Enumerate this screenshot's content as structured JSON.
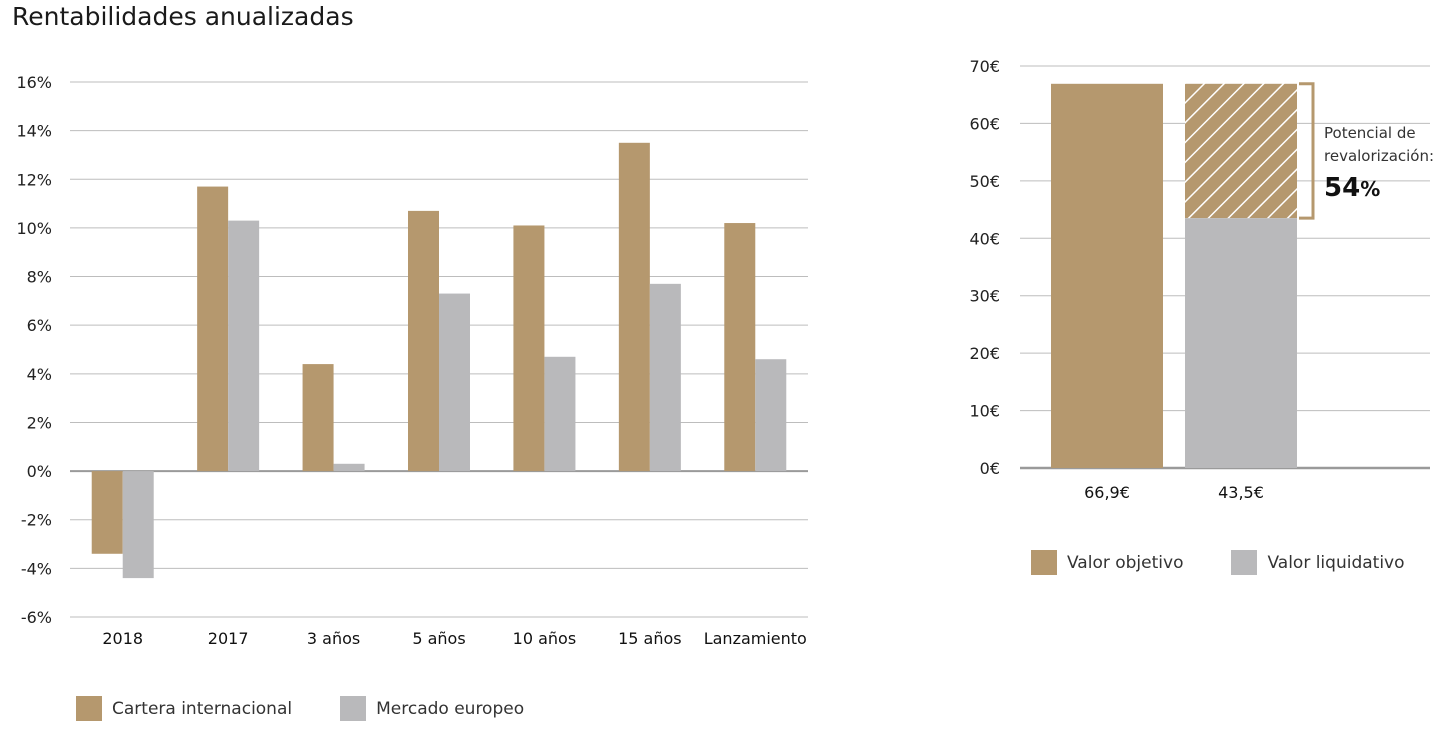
{
  "title": "Rentabilidades anualizadas",
  "colors": {
    "gold": "#b5986e",
    "gray": "#b9b9bb",
    "grid": "#bdbdbd",
    "axis": "#9a9a9a"
  },
  "chart_data": [
    {
      "type": "bar",
      "title": "Rentabilidades anualizadas",
      "categories": [
        "2018",
        "2017",
        "3 años",
        "5 años",
        "10 años",
        "15 años",
        "Lanzamiento"
      ],
      "series": [
        {
          "name": "Cartera internacional",
          "color": "#b5986e",
          "values": [
            -3.4,
            11.7,
            4.4,
            10.7,
            10.1,
            13.5,
            10.2
          ]
        },
        {
          "name": "Mercado europeo",
          "color": "#b9b9bb",
          "values": [
            -4.4,
            10.3,
            0.3,
            7.3,
            4.7,
            7.7,
            4.6
          ]
        }
      ],
      "ylim": [
        -6,
        16
      ],
      "yticks": [
        16,
        14,
        12,
        10,
        8,
        6,
        4,
        2,
        0,
        -2,
        -4,
        -6
      ],
      "ytick_labels": [
        "16%",
        "14%",
        "12%",
        "10%",
        "8%",
        "6%",
        "4%",
        "2%",
        "0%",
        "-2%",
        "-4%",
        "-6%"
      ],
      "grid": true,
      "legend": "bottom-left"
    },
    {
      "type": "bar",
      "categories": [
        "Valor objetivo",
        "Valor liquidativo"
      ],
      "values": [
        66.9,
        43.5
      ],
      "value_labels": [
        "66,9€",
        "43,5€"
      ],
      "colors": [
        "#b5986e",
        "#b9b9bb"
      ],
      "ylim": [
        0,
        70
      ],
      "yticks": [
        70,
        60,
        50,
        40,
        30,
        20,
        10,
        0
      ],
      "ytick_labels": [
        "70€",
        "60€",
        "50€",
        "40€",
        "30€",
        "20€",
        "10€",
        "0€"
      ],
      "grid": true,
      "legend": "bottom-left",
      "annotation": {
        "line1": "Potencial de",
        "line2": "revalorización:",
        "value": "54",
        "unit": "%"
      }
    }
  ]
}
